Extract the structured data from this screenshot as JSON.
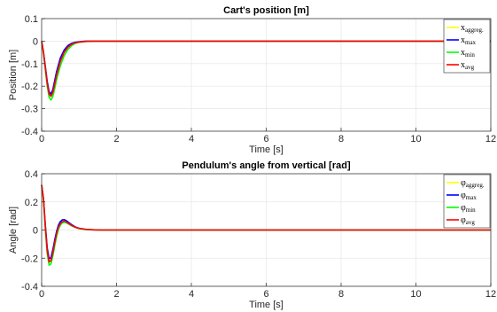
{
  "chart_data": [
    {
      "type": "line",
      "title": "Cart's position [m]",
      "xlabel": "Time [s]",
      "ylabel": "Position [m]",
      "xlim": [
        0,
        12
      ],
      "ylim": [
        -0.4,
        0.1
      ],
      "xticks": [
        "0",
        "2",
        "4",
        "6",
        "8",
        "10",
        "12"
      ],
      "yticks": [
        "-0.4",
        "-0.3",
        "-0.2",
        "-0.1",
        "0",
        "0.1"
      ],
      "grid": true,
      "legend_placement": "top-right",
      "series": [
        {
          "name": "x",
          "sub": "aggreg.",
          "color": "#ffff00",
          "x": [
            0,
            0.05,
            0.1,
            0.15,
            0.2,
            0.25,
            0.3,
            0.35,
            0.4,
            0.5,
            0.6,
            0.7,
            0.8,
            0.9,
            1.0,
            1.1,
            1.2,
            1.4,
            1.6,
            2.0,
            3,
            12
          ],
          "y": [
            0,
            -0.05,
            -0.12,
            -0.19,
            -0.235,
            -0.245,
            -0.225,
            -0.19,
            -0.15,
            -0.09,
            -0.05,
            -0.027,
            -0.014,
            -0.007,
            -0.004,
            -0.002,
            -0.001,
            0,
            0,
            0,
            0,
            0
          ]
        },
        {
          "name": "x",
          "sub": "max",
          "color": "#0000ff",
          "x": [
            0,
            0.05,
            0.1,
            0.15,
            0.2,
            0.25,
            0.3,
            0.35,
            0.4,
            0.5,
            0.6,
            0.7,
            0.8,
            0.9,
            1.0,
            1.1,
            1.2,
            1.4,
            1.6,
            2.0,
            3,
            12
          ],
          "y": [
            0,
            -0.05,
            -0.115,
            -0.18,
            -0.225,
            -0.235,
            -0.215,
            -0.175,
            -0.135,
            -0.075,
            -0.04,
            -0.02,
            -0.01,
            -0.005,
            -0.003,
            -0.001,
            0,
            0,
            0,
            0,
            0,
            0
          ]
        },
        {
          "name": "x",
          "sub": "min",
          "color": "#00ff00",
          "x": [
            0,
            0.05,
            0.1,
            0.15,
            0.2,
            0.25,
            0.3,
            0.35,
            0.4,
            0.5,
            0.6,
            0.7,
            0.8,
            0.9,
            1.0,
            1.1,
            1.2,
            1.4,
            1.6,
            2.0,
            3,
            12
          ],
          "y": [
            0,
            -0.055,
            -0.13,
            -0.2,
            -0.25,
            -0.262,
            -0.245,
            -0.21,
            -0.17,
            -0.11,
            -0.065,
            -0.037,
            -0.02,
            -0.01,
            -0.005,
            -0.003,
            -0.001,
            0,
            0,
            0,
            0,
            0
          ]
        },
        {
          "name": "x",
          "sub": "avg",
          "color": "#ff0000",
          "x": [
            0,
            0.05,
            0.1,
            0.15,
            0.2,
            0.25,
            0.3,
            0.35,
            0.4,
            0.5,
            0.6,
            0.7,
            0.8,
            0.9,
            1.0,
            1.1,
            1.2,
            1.4,
            1.6,
            2.0,
            3,
            12
          ],
          "y": [
            0,
            -0.05,
            -0.12,
            -0.19,
            -0.235,
            -0.245,
            -0.227,
            -0.19,
            -0.15,
            -0.09,
            -0.05,
            -0.027,
            -0.014,
            -0.007,
            -0.004,
            -0.002,
            -0.001,
            0,
            0,
            0,
            0,
            0
          ]
        }
      ]
    },
    {
      "type": "line",
      "title": "Pendulum's angle from vertical [rad]",
      "xlabel": "Time [s]",
      "ylabel": "Angle [rad]",
      "xlim": [
        0,
        12
      ],
      "ylim": [
        -0.4,
        0.4
      ],
      "xticks": [
        "0",
        "2",
        "4",
        "6",
        "8",
        "10",
        "12"
      ],
      "yticks": [
        "-0.4",
        "-0.2",
        "0",
        "0.2",
        "0.4"
      ],
      "grid": true,
      "legend_placement": "top-right",
      "series": [
        {
          "name": "φ",
          "sub": "aggreg.",
          "color": "#ffff00",
          "x": [
            0,
            0.05,
            0.1,
            0.15,
            0.2,
            0.25,
            0.3,
            0.35,
            0.4,
            0.45,
            0.5,
            0.55,
            0.6,
            0.65,
            0.7,
            0.8,
            0.9,
            1.0,
            1.2,
            1.4,
            1.6,
            2.0,
            3,
            12
          ],
          "y": [
            0.32,
            0.22,
            0.02,
            -0.15,
            -0.225,
            -0.215,
            -0.16,
            -0.09,
            -0.025,
            0.02,
            0.045,
            0.058,
            0.062,
            0.058,
            0.05,
            0.033,
            0.02,
            0.011,
            0.004,
            0.001,
            0,
            0,
            0,
            0
          ]
        },
        {
          "name": "φ",
          "sub": "max",
          "color": "#0000ff",
          "x": [
            0,
            0.05,
            0.1,
            0.15,
            0.2,
            0.25,
            0.3,
            0.35,
            0.4,
            0.45,
            0.5,
            0.55,
            0.6,
            0.65,
            0.7,
            0.8,
            0.9,
            1.0,
            1.2,
            1.4,
            1.6,
            2.0,
            3,
            12
          ],
          "y": [
            0.32,
            0.22,
            0.03,
            -0.13,
            -0.205,
            -0.195,
            -0.14,
            -0.07,
            -0.01,
            0.035,
            0.06,
            0.072,
            0.074,
            0.068,
            0.058,
            0.038,
            0.022,
            0.012,
            0.004,
            0.001,
            0,
            0,
            0,
            0
          ]
        },
        {
          "name": "φ",
          "sub": "min",
          "color": "#00ff00",
          "x": [
            0,
            0.05,
            0.1,
            0.15,
            0.2,
            0.25,
            0.3,
            0.35,
            0.4,
            0.45,
            0.5,
            0.55,
            0.6,
            0.65,
            0.7,
            0.8,
            0.9,
            1.0,
            1.2,
            1.4,
            1.6,
            2.0,
            3,
            12
          ],
          "y": [
            0.32,
            0.21,
            0.0,
            -0.17,
            -0.25,
            -0.24,
            -0.185,
            -0.11,
            -0.045,
            0.005,
            0.035,
            0.05,
            0.055,
            0.052,
            0.045,
            0.03,
            0.018,
            0.01,
            0.003,
            0.001,
            0,
            0,
            0,
            0
          ]
        },
        {
          "name": "φ",
          "sub": "avg",
          "color": "#ff0000",
          "x": [
            0,
            0.05,
            0.1,
            0.15,
            0.2,
            0.25,
            0.3,
            0.35,
            0.4,
            0.45,
            0.5,
            0.55,
            0.6,
            0.65,
            0.7,
            0.8,
            0.9,
            1.0,
            1.2,
            1.4,
            1.6,
            2.0,
            3,
            12
          ],
          "y": [
            0.32,
            0.22,
            0.02,
            -0.15,
            -0.227,
            -0.217,
            -0.162,
            -0.09,
            -0.026,
            0.02,
            0.046,
            0.059,
            0.063,
            0.059,
            0.05,
            0.033,
            0.02,
            0.011,
            0.004,
            0.001,
            0,
            0,
            0,
            0
          ]
        }
      ]
    }
  ]
}
